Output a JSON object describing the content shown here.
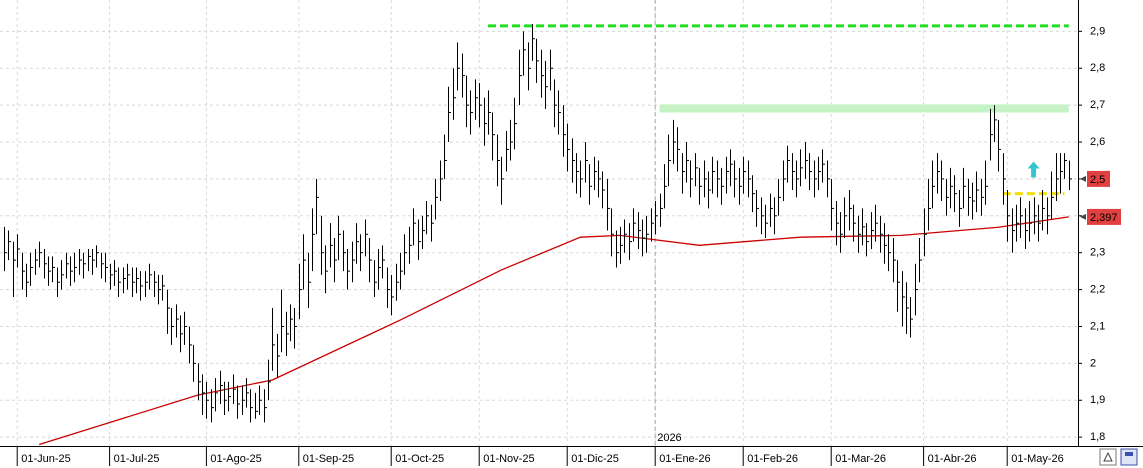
{
  "chart_data": {
    "type": "ohlc",
    "xlim": [
      -0.91,
      244.09
    ],
    "xticks": [
      {
        "value": 3,
        "label": "01-Jun-25"
      },
      {
        "value": 24,
        "label": "01-Jul-25"
      },
      {
        "value": 46,
        "label": "01-Ago-25"
      },
      {
        "value": 67,
        "label": "01-Sep-25"
      },
      {
        "value": 88,
        "label": "01-Oct-25"
      },
      {
        "value": 108,
        "label": "01-Nov-25"
      },
      {
        "value": 128,
        "label": "01-Dic-25"
      },
      {
        "value": 148,
        "label": "01-Ene-26"
      },
      {
        "value": 168,
        "label": "01-Feb-26"
      },
      {
        "value": 188,
        "label": "01-Mar-26"
      },
      {
        "value": 209,
        "label": "01-Abr-26"
      },
      {
        "value": 228,
        "label": "01-May-26"
      }
    ],
    "ylim": [
      1.776,
      2.985
    ],
    "yticks": [
      {
        "value": 1.8,
        "label": "1,8"
      },
      {
        "value": 1.9,
        "label": "1,9"
      },
      {
        "value": 2,
        "label": "2"
      },
      {
        "value": 2.1,
        "label": "2,1"
      },
      {
        "value": 2.2,
        "label": "2,2"
      },
      {
        "value": 2.3,
        "label": "2,3"
      },
      {
        "value": 2.4,
        "label": "2,4"
      },
      {
        "value": 2.5,
        "label": "2,5"
      },
      {
        "value": 2.6,
        "label": "2,6"
      },
      {
        "value": 2.7,
        "label": "2,7"
      },
      {
        "value": 2.8,
        "label": "2,8"
      },
      {
        "value": 2.9,
        "label": "2,9"
      }
    ],
    "grid": true,
    "year_marker": {
      "index": 148,
      "label": "2026"
    },
    "color": "#000000",
    "high": [
      2.37,
      2.36,
      2.33,
      2.35,
      2.3,
      2.27,
      2.3,
      2.31,
      2.33,
      2.31,
      2.29,
      2.29,
      2.26,
      2.28,
      2.3,
      2.29,
      2.3,
      2.31,
      2.3,
      2.31,
      2.31,
      2.32,
      2.3,
      2.3,
      2.27,
      2.28,
      2.26,
      2.26,
      2.27,
      2.26,
      2.26,
      2.25,
      2.25,
      2.27,
      2.25,
      2.24,
      2.24,
      2.2,
      2.15,
      2.16,
      2.13,
      2.14,
      2.1,
      2.05,
      2.0,
      1.97,
      1.95,
      1.93,
      1.96,
      1.98,
      1.95,
      1.95,
      1.97,
      1.94,
      1.94,
      1.96,
      1.93,
      1.92,
      1.94,
      1.93,
      2.01,
      2.15,
      2.08,
      2.2,
      2.14,
      2.16,
      2.15,
      2.27,
      2.35,
      2.3,
      2.42,
      2.5,
      2.4,
      2.32,
      2.38,
      2.34,
      2.4,
      2.36,
      2.31,
      2.33,
      2.38,
      2.35,
      2.39,
      2.34,
      2.28,
      2.31,
      2.32,
      2.26,
      2.24,
      2.27,
      2.3,
      2.35,
      2.37,
      2.42,
      2.39,
      2.4,
      2.44,
      2.43,
      2.5,
      2.55,
      2.62,
      2.75,
      2.8,
      2.87,
      2.84,
      2.78,
      2.74,
      2.77,
      2.76,
      2.72,
      2.74,
      2.68,
      2.62,
      2.56,
      2.63,
      2.66,
      2.72,
      2.85,
      2.9,
      2.87,
      2.92,
      2.88,
      2.85,
      2.82,
      2.85,
      2.77,
      2.74,
      2.7,
      2.65,
      2.61,
      2.57,
      2.55,
      2.6,
      2.54,
      2.56,
      2.55,
      2.52,
      2.5,
      2.42,
      2.36,
      2.37,
      2.39,
      2.38,
      2.42,
      2.41,
      2.39,
      2.4,
      2.42,
      2.44,
      2.46,
      2.54,
      2.62,
      2.66,
      2.64,
      2.57,
      2.6,
      2.55,
      2.57,
      2.53,
      2.55,
      2.52,
      2.56,
      2.55,
      2.53,
      2.56,
      2.58,
      2.55,
      2.53,
      2.56,
      2.55,
      2.51,
      2.47,
      2.45,
      2.43,
      2.46,
      2.45,
      2.5,
      2.55,
      2.59,
      2.57,
      2.55,
      2.58,
      2.6,
      2.57,
      2.55,
      2.56,
      2.58,
      2.55,
      2.5,
      2.44,
      2.41,
      2.45,
      2.47,
      2.43,
      2.4,
      2.42,
      2.38,
      2.41,
      2.43,
      2.4,
      2.38,
      2.35,
      2.34,
      2.28,
      2.25,
      2.22,
      2.18,
      2.27,
      2.34,
      2.42,
      2.5,
      2.55,
      2.57,
      2.55,
      2.5,
      2.53,
      2.51,
      2.47,
      2.53,
      2.5,
      2.49,
      2.52,
      2.5,
      2.55,
      2.69,
      2.7,
      2.66,
      2.57,
      2.47,
      2.42,
      2.43,
      2.45,
      2.42,
      2.44,
      2.45,
      2.43,
      2.47,
      2.45,
      2.52,
      2.57,
      2.57,
      2.57,
      2.55
    ],
    "low": [
      2.25,
      2.28,
      2.18,
      2.26,
      2.2,
      2.18,
      2.21,
      2.24,
      2.26,
      2.23,
      2.21,
      2.22,
      2.18,
      2.2,
      2.23,
      2.21,
      2.22,
      2.24,
      2.23,
      2.25,
      2.24,
      2.26,
      2.23,
      2.22,
      2.2,
      2.21,
      2.18,
      2.19,
      2.2,
      2.18,
      2.19,
      2.17,
      2.18,
      2.2,
      2.18,
      2.16,
      2.17,
      2.08,
      2.05,
      2.07,
      2.03,
      2.05,
      2.0,
      1.95,
      1.9,
      1.86,
      1.85,
      1.84,
      1.87,
      1.89,
      1.86,
      1.87,
      1.89,
      1.85,
      1.86,
      1.88,
      1.84,
      1.85,
      1.86,
      1.84,
      1.9,
      1.98,
      1.96,
      2.03,
      2.02,
      2.06,
      2.04,
      2.12,
      2.2,
      2.15,
      2.25,
      2.35,
      2.24,
      2.19,
      2.26,
      2.22,
      2.28,
      2.25,
      2.2,
      2.22,
      2.27,
      2.25,
      2.29,
      2.22,
      2.18,
      2.2,
      2.23,
      2.15,
      2.13,
      2.17,
      2.2,
      2.24,
      2.27,
      2.32,
      2.28,
      2.31,
      2.35,
      2.33,
      2.39,
      2.44,
      2.5,
      2.6,
      2.66,
      2.74,
      2.72,
      2.64,
      2.62,
      2.66,
      2.64,
      2.59,
      2.62,
      2.55,
      2.48,
      2.43,
      2.52,
      2.55,
      2.58,
      2.7,
      2.78,
      2.74,
      2.82,
      2.76,
      2.72,
      2.69,
      2.74,
      2.64,
      2.62,
      2.56,
      2.52,
      2.49,
      2.46,
      2.45,
      2.49,
      2.43,
      2.47,
      2.45,
      2.42,
      2.36,
      2.29,
      2.26,
      2.27,
      2.3,
      2.28,
      2.33,
      2.31,
      2.29,
      2.3,
      2.33,
      2.35,
      2.37,
      2.42,
      2.48,
      2.54,
      2.52,
      2.46,
      2.49,
      2.45,
      2.48,
      2.43,
      2.45,
      2.42,
      2.46,
      2.45,
      2.43,
      2.46,
      2.48,
      2.45,
      2.43,
      2.46,
      2.45,
      2.41,
      2.37,
      2.35,
      2.34,
      2.37,
      2.35,
      2.4,
      2.44,
      2.49,
      2.47,
      2.45,
      2.48,
      2.5,
      2.47,
      2.45,
      2.47,
      2.49,
      2.45,
      2.36,
      2.32,
      2.3,
      2.34,
      2.36,
      2.33,
      2.3,
      2.32,
      2.29,
      2.31,
      2.33,
      2.3,
      2.27,
      2.25,
      2.22,
      2.14,
      2.1,
      2.08,
      2.07,
      2.13,
      2.22,
      2.29,
      2.36,
      2.42,
      2.46,
      2.44,
      2.4,
      2.42,
      2.41,
      2.37,
      2.42,
      2.4,
      2.39,
      2.41,
      2.4,
      2.43,
      2.55,
      2.6,
      2.52,
      2.43,
      2.33,
      2.3,
      2.33,
      2.34,
      2.31,
      2.33,
      2.35,
      2.33,
      2.36,
      2.35,
      2.39,
      2.44,
      2.46,
      2.5,
      2.47
    ],
    "close": [
      2.3,
      2.33,
      2.28,
      2.31,
      2.25,
      2.22,
      2.26,
      2.28,
      2.3,
      2.27,
      2.25,
      2.26,
      2.22,
      2.24,
      2.27,
      2.25,
      2.26,
      2.28,
      2.27,
      2.29,
      2.28,
      2.3,
      2.27,
      2.26,
      2.24,
      2.25,
      2.22,
      2.23,
      2.24,
      2.22,
      2.23,
      2.21,
      2.22,
      2.24,
      2.22,
      2.2,
      2.21,
      2.15,
      2.1,
      2.12,
      2.08,
      2.1,
      2.05,
      2.0,
      1.95,
      1.92,
      1.9,
      1.88,
      1.92,
      1.94,
      1.9,
      1.91,
      1.93,
      1.89,
      1.9,
      1.92,
      1.88,
      1.87,
      1.9,
      1.88,
      1.95,
      2.05,
      2.02,
      2.1,
      2.08,
      2.12,
      2.1,
      2.2,
      2.28,
      2.22,
      2.35,
      2.45,
      2.3,
      2.25,
      2.32,
      2.28,
      2.35,
      2.3,
      2.25,
      2.28,
      2.33,
      2.3,
      2.35,
      2.28,
      2.22,
      2.26,
      2.28,
      2.2,
      2.18,
      2.22,
      2.25,
      2.3,
      2.32,
      2.38,
      2.33,
      2.36,
      2.4,
      2.38,
      2.45,
      2.5,
      2.55,
      2.68,
      2.72,
      2.8,
      2.78,
      2.7,
      2.68,
      2.72,
      2.7,
      2.65,
      2.68,
      2.62,
      2.55,
      2.5,
      2.58,
      2.6,
      2.65,
      2.78,
      2.85,
      2.8,
      2.88,
      2.82,
      2.78,
      2.75,
      2.8,
      2.7,
      2.68,
      2.62,
      2.58,
      2.55,
      2.52,
      2.5,
      2.55,
      2.48,
      2.52,
      2.5,
      2.47,
      2.42,
      2.35,
      2.3,
      2.32,
      2.35,
      2.33,
      2.38,
      2.36,
      2.34,
      2.35,
      2.38,
      2.4,
      2.42,
      2.48,
      2.55,
      2.6,
      2.58,
      2.52,
      2.55,
      2.5,
      2.53,
      2.48,
      2.5,
      2.47,
      2.52,
      2.5,
      2.48,
      2.52,
      2.54,
      2.5,
      2.48,
      2.52,
      2.5,
      2.46,
      2.42,
      2.4,
      2.38,
      2.42,
      2.4,
      2.45,
      2.5,
      2.55,
      2.52,
      2.5,
      2.53,
      2.55,
      2.52,
      2.5,
      2.52,
      2.54,
      2.5,
      2.42,
      2.38,
      2.35,
      2.4,
      2.42,
      2.38,
      2.35,
      2.37,
      2.33,
      2.36,
      2.38,
      2.35,
      2.32,
      2.3,
      2.28,
      2.22,
      2.18,
      2.15,
      2.12,
      2.2,
      2.28,
      2.35,
      2.42,
      2.48,
      2.52,
      2.5,
      2.45,
      2.48,
      2.46,
      2.42,
      2.48,
      2.45,
      2.44,
      2.47,
      2.45,
      2.48,
      2.62,
      2.66,
      2.58,
      2.5,
      2.4,
      2.36,
      2.38,
      2.4,
      2.36,
      2.38,
      2.4,
      2.38,
      2.42,
      2.4,
      2.45,
      2.5,
      2.52,
      2.55,
      2.5
    ],
    "price_marker": {
      "value": 2.5,
      "label": "2,5",
      "color": "#e04040"
    },
    "moving_average": {
      "color": "#cc0000",
      "x": [
        8,
        44,
        61,
        90,
        113,
        131,
        140,
        158,
        181,
        204,
        226,
        242
      ],
      "values": [
        1.78,
        1.914,
        1.955,
        2.117,
        2.253,
        2.342,
        2.347,
        2.32,
        2.342,
        2.347,
        2.369,
        2.397
      ],
      "marker": {
        "value": 2.397,
        "label": "2,397",
        "color": "#e04040"
      }
    },
    "levels": [
      {
        "value": 2.915,
        "from": 110,
        "to": 242,
        "color": "#22dd22",
        "style": "dashed"
      },
      {
        "value": 2.46,
        "from": 227,
        "to": 241,
        "color": "#f2e000",
        "style": "dashed"
      }
    ],
    "band": {
      "low": 2.68,
      "high": 2.702,
      "from": 149,
      "to": 242,
      "color": "#c6f3c6"
    },
    "signal": {
      "direction": "up",
      "index": 234,
      "value": 2.52,
      "color": "#33c6cc"
    }
  }
}
